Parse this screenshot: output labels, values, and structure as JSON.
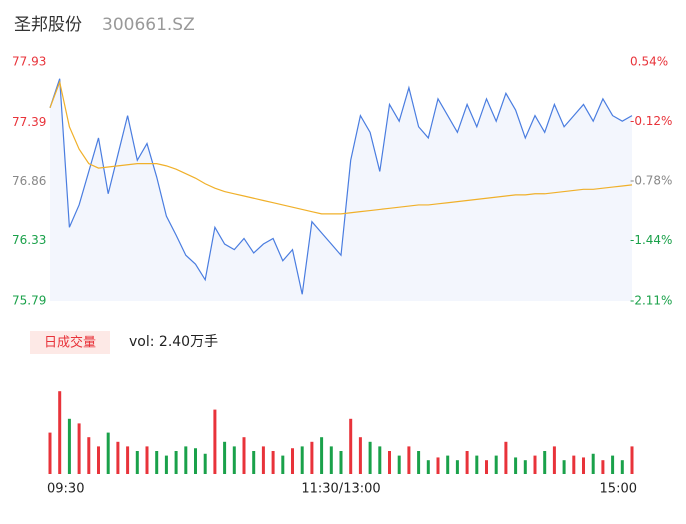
{
  "chart_data": [
    {
      "type": "line",
      "title": "圣邦股份",
      "subtitle": "300661.SZ",
      "xlim": [
        0,
        240
      ],
      "xticks": [
        {
          "value": 0,
          "label": "09:30"
        },
        {
          "value": 120,
          "label": "11:30/13:00"
        },
        {
          "value": 240,
          "label": "15:00"
        }
      ],
      "ylim": [
        75.79,
        77.93
      ],
      "yticks": [
        77.93,
        77.39,
        76.86,
        76.33,
        75.79
      ],
      "y2lim": [
        -2.11,
        0.54
      ],
      "y2ticks": [
        {
          "value": 0.54,
          "label": "0.54%"
        },
        {
          "value": -0.12,
          "label": "-0.12%"
        },
        {
          "value": -0.78,
          "label": "-0.78%"
        },
        {
          "value": -1.44,
          "label": "-1.44%"
        },
        {
          "value": -2.11,
          "label": "-2.11%"
        }
      ],
      "up_color": "#e8333a",
      "down_color": "#1aa14a",
      "flat_color": "#888888",
      "x": [
        0,
        4,
        8,
        12,
        16,
        20,
        24,
        28,
        32,
        36,
        40,
        44,
        48,
        52,
        56,
        60,
        64,
        68,
        72,
        76,
        80,
        84,
        88,
        92,
        96,
        100,
        104,
        108,
        112,
        116,
        120,
        124,
        128,
        132,
        136,
        140,
        144,
        148,
        152,
        156,
        160,
        164,
        168,
        172,
        176,
        180,
        184,
        188,
        192,
        196,
        200,
        204,
        208,
        212,
        216,
        220,
        224,
        228,
        232,
        236,
        240
      ],
      "series": [
        {
          "name": "price",
          "color": "#4a7de0",
          "values": [
            77.52,
            77.78,
            76.45,
            76.65,
            76.95,
            77.25,
            76.75,
            77.1,
            77.45,
            77.05,
            77.2,
            76.9,
            76.55,
            76.38,
            76.2,
            76.12,
            75.98,
            76.45,
            76.3,
            76.25,
            76.35,
            76.22,
            76.3,
            76.35,
            76.15,
            76.25,
            75.85,
            76.5,
            76.4,
            76.3,
            76.2,
            77.05,
            77.45,
            77.3,
            76.95,
            77.55,
            77.4,
            77.7,
            77.35,
            77.25,
            77.6,
            77.45,
            77.3,
            77.55,
            77.35,
            77.6,
            77.4,
            77.65,
            77.5,
            77.25,
            77.45,
            77.3,
            77.55,
            77.35,
            77.45,
            77.55,
            77.4,
            77.6,
            77.45,
            77.4,
            77.45
          ]
        },
        {
          "name": "average",
          "color": "#f0b02a",
          "values": [
            77.52,
            77.75,
            77.35,
            77.15,
            77.02,
            76.98,
            76.99,
            77.0,
            77.01,
            77.02,
            77.02,
            77.02,
            77.0,
            76.97,
            76.93,
            76.89,
            76.84,
            76.8,
            76.77,
            76.75,
            76.73,
            76.71,
            76.69,
            76.67,
            76.65,
            76.63,
            76.61,
            76.59,
            76.57,
            76.57,
            76.57,
            76.58,
            76.59,
            76.6,
            76.61,
            76.62,
            76.63,
            76.64,
            76.65,
            76.65,
            76.66,
            76.67,
            76.68,
            76.69,
            76.7,
            76.71,
            76.72,
            76.73,
            76.74,
            76.74,
            76.75,
            76.75,
            76.76,
            76.77,
            76.78,
            76.79,
            76.79,
            76.8,
            76.81,
            76.82,
            76.83
          ]
        }
      ]
    },
    {
      "type": "bar",
      "legend": "日成交量",
      "label": "vol: 2.40万手",
      "ylim": [
        0,
        100
      ],
      "values": [
        45,
        90,
        60,
        55,
        40,
        30,
        45,
        35,
        30,
        25,
        30,
        25,
        20,
        25,
        30,
        28,
        22,
        70,
        35,
        30,
        40,
        25,
        30,
        25,
        20,
        28,
        30,
        35,
        40,
        30,
        25,
        60,
        40,
        35,
        30,
        25,
        20,
        30,
        25,
        15,
        18,
        20,
        15,
        25,
        20,
        15,
        20,
        35,
        18,
        15,
        20,
        25,
        30,
        15,
        20,
        18,
        22,
        15,
        20,
        15,
        30
      ]
    }
  ]
}
